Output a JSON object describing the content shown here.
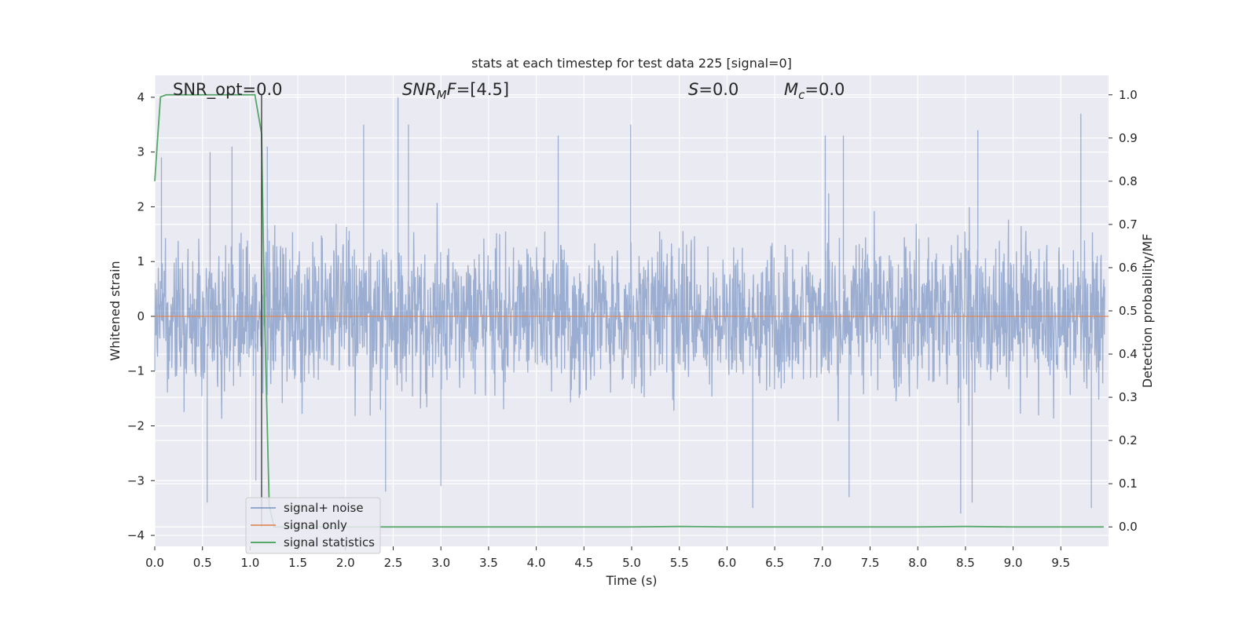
{
  "chart_data": {
    "type": "line",
    "title": "stats at each timestep for test data 225 [signal=0]",
    "xlabel": "Time (s)",
    "ylabel": "Whitened strain",
    "y2label": "Detection probability/MF",
    "xlim": [
      0.0,
      10.0
    ],
    "ylim": [
      -4.2,
      4.4
    ],
    "y2lim": [
      -0.045,
      1.045
    ],
    "x_ticks": [
      "0.0",
      "0.5",
      "1.0",
      "1.5",
      "2.0",
      "2.5",
      "3.0",
      "3.5",
      "4.0",
      "4.5",
      "5.0",
      "5.5",
      "6.0",
      "6.5",
      "7.0",
      "7.5",
      "8.0",
      "8.5",
      "9.0",
      "9.5"
    ],
    "y_ticks": [
      "4",
      "3",
      "2",
      "1",
      "0",
      "−1",
      "−2",
      "−3",
      "−4"
    ],
    "y2_ticks": [
      "1.0",
      "0.9",
      "0.8",
      "0.7",
      "0.6",
      "0.5",
      "0.4",
      "0.3",
      "0.2",
      "0.1",
      "0.0"
    ],
    "grid": true,
    "legend_position": "lower-left",
    "annotations": {
      "snr_opt": "SNR_opt=0.0",
      "snr_mf_main": "SNR",
      "snr_mf_sub": "M",
      "snr_mf_tail": "F",
      "snr_mf_value": "=[4.5]",
      "s_main": "S",
      "s_value": "=0.0",
      "mc_main": "M",
      "mc_sub": "c",
      "mc_value": "=0.0"
    },
    "vertical_marker_x": 1.12,
    "series": [
      {
        "name": "signal+ noise",
        "color": "#4c72b0",
        "axis": "left",
        "description": "whitened noise, envelope approx ±2.5",
        "peaks": [
          {
            "x": 0.07,
            "y": 2.9
          },
          {
            "x": 0.58,
            "y": 3.0
          },
          {
            "x": 0.81,
            "y": 3.1
          },
          {
            "x": 1.18,
            "y": 3.1
          },
          {
            "x": 2.19,
            "y": 3.5
          },
          {
            "x": 2.55,
            "y": 4.0
          },
          {
            "x": 2.66,
            "y": 3.5
          },
          {
            "x": 4.23,
            "y": 3.3
          },
          {
            "x": 4.99,
            "y": 3.5
          },
          {
            "x": 7.03,
            "y": 3.3
          },
          {
            "x": 7.22,
            "y": 3.3
          },
          {
            "x": 8.63,
            "y": 3.4
          },
          {
            "x": 9.71,
            "y": 3.7
          }
        ],
        "troughs": [
          {
            "x": 0.55,
            "y": -3.4
          },
          {
            "x": 1.06,
            "y": -3.0
          },
          {
            "x": 2.42,
            "y": -3.2
          },
          {
            "x": 3.0,
            "y": -3.1
          },
          {
            "x": 6.27,
            "y": -3.5
          },
          {
            "x": 7.28,
            "y": -3.3
          },
          {
            "x": 8.45,
            "y": -3.6
          },
          {
            "x": 8.57,
            "y": -3.4
          },
          {
            "x": 9.82,
            "y": -3.5
          }
        ]
      },
      {
        "name": "signal only",
        "color": "#dd8452",
        "axis": "left",
        "x": [
          0.0,
          10.0
        ],
        "y": [
          0.0,
          0.0
        ]
      },
      {
        "name": "signal statistics",
        "color": "#55a868",
        "axis": "right",
        "x": [
          0.0,
          0.03,
          0.06,
          0.12,
          0.2,
          0.4,
          0.7,
          1.0,
          1.05,
          1.12,
          1.15,
          1.2,
          1.25,
          1.3,
          1.4,
          2.0,
          5.0,
          5.5,
          6.0,
          8.0,
          8.5,
          9.0,
          9.95
        ],
        "y": [
          0.8,
          0.9,
          0.995,
          1.0,
          1.0,
          1.0,
          1.0,
          1.0,
          1.0,
          0.91,
          0.5,
          0.05,
          0.0,
          0.0,
          0.0,
          0.0,
          0.0,
          0.001,
          0.0,
          0.0,
          0.001,
          0.0,
          0.0
        ]
      }
    ]
  }
}
